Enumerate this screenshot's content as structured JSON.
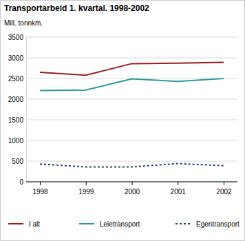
{
  "chart_data": {
    "type": "line",
    "title": "Transportarbeid 1. kvartal. 1998-2002",
    "y_label": "Mill. tonnkm.",
    "categories": [
      "1998",
      "1999",
      "2000",
      "2001",
      "2002"
    ],
    "series": [
      {
        "name": "I alt",
        "color": "#9b1c1f",
        "line_style": "solid",
        "values": [
          2650,
          2580,
          2860,
          2870,
          2890
        ]
      },
      {
        "name": "Leietransport",
        "color": "#2a9a9c",
        "line_style": "solid",
        "values": [
          2210,
          2220,
          2490,
          2430,
          2500
        ]
      },
      {
        "name": "Egentransport",
        "color": "#1f3f7a",
        "line_style": "dotted",
        "values": [
          430,
          360,
          360,
          440,
          390
        ]
      }
    ],
    "ylim": [
      0,
      3500
    ],
    "yticks": [
      0,
      500,
      1000,
      1500,
      2000,
      2500,
      3000,
      3500
    ],
    "grid": true,
    "legend": "bottom"
  }
}
